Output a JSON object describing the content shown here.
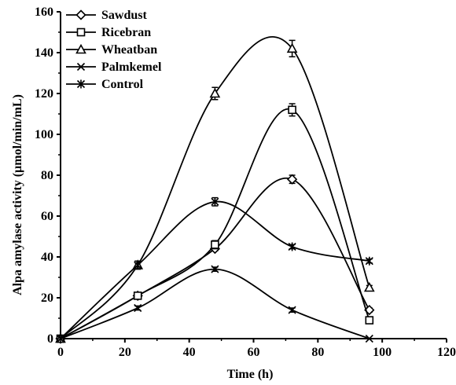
{
  "chart_data": {
    "type": "line",
    "xlabel": "Time (h)",
    "ylabel": "Alpa amylase activity (µmol/min/mL)",
    "xlim": [
      0,
      120
    ],
    "ylim": [
      0,
      160
    ],
    "x_ticks": [
      "0",
      "20",
      "40",
      "60",
      "80",
      "100",
      "120"
    ],
    "y_ticks": [
      "0",
      "20",
      "40",
      "60",
      "80",
      "100",
      "120",
      "140",
      "160"
    ],
    "grid": false,
    "legend_position": "top-left",
    "x": [
      0,
      24,
      48,
      72,
      96
    ],
    "series": [
      {
        "name": "Sawdust",
        "marker": "diamond",
        "values": [
          0,
          21,
          44,
          78,
          14
        ],
        "errors": [
          0,
          1,
          1,
          2,
          1
        ]
      },
      {
        "name": "Ricebran",
        "marker": "square",
        "values": [
          0,
          21,
          46,
          112,
          9
        ],
        "errors": [
          0,
          1,
          2,
          3,
          1
        ]
      },
      {
        "name": "Wheatban",
        "marker": "triangle",
        "values": [
          0,
          36,
          120,
          142,
          25
        ],
        "errors": [
          0,
          2,
          3,
          4,
          1
        ]
      },
      {
        "name": "Palmkemel",
        "marker": "x",
        "values": [
          0,
          15,
          34,
          14,
          0
        ],
        "errors": [
          0,
          1,
          1,
          1,
          0
        ]
      },
      {
        "name": "Control",
        "marker": "star",
        "values": [
          0,
          36,
          67,
          45,
          38
        ],
        "errors": [
          0,
          1,
          2,
          1,
          1
        ]
      }
    ],
    "colors": {
      "line": "#000000",
      "background": "#ffffff"
    }
  }
}
